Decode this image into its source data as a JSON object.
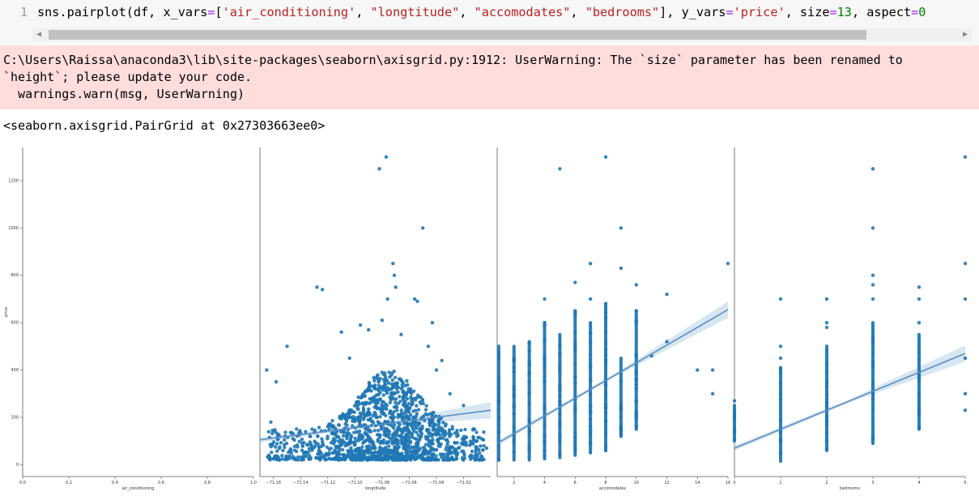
{
  "cell": {
    "line_number": "1",
    "code_text": "sns.pairplot(df, x_vars=['air_conditioning', \"longtitude\", \"accomodates\", \"bedrooms\"], y_vars='price', size=13, aspect=0"
  },
  "scrollbar": {
    "left_arrow": "◀",
    "right_arrow": "▶"
  },
  "stderr": {
    "line1": "C:\\Users\\Raissa\\anaconda3\\lib\\site-packages\\seaborn\\axisgrid.py:1912: UserWarning: The `size` parameter has been renamed to",
    "line2": "`height`; please update your code.",
    "line3": "  warnings.warn(msg, UserWarning)"
  },
  "output_repr": "<seaborn.axisgrid.PairGrid at 0x27303663ee0>",
  "colors": {
    "points": "#1f77b4",
    "regline": "#1f77b4",
    "stderr_bg": "#ffdddd",
    "code_bg": "#f7f7f7"
  },
  "chart_data": [
    {
      "type": "scatter",
      "xlabel": "air_conditioning",
      "ylabel": "price",
      "xlim": [
        0.0,
        1.0
      ],
      "ylim": [
        -50,
        1340
      ],
      "x_ticks": [
        "0.0",
        "0.2",
        "0.4",
        "0.6",
        "0.8",
        "1.0"
      ],
      "y_ticks": [
        "0",
        "200",
        "400",
        "600",
        "800",
        "1000",
        "1200"
      ],
      "y_tick_values": [
        0,
        200,
        400,
        600,
        800,
        1000,
        1200
      ],
      "points": [],
      "regression": null
    },
    {
      "type": "scatter",
      "xlabel": "longtitude",
      "ylabel": "",
      "xlim": [
        -71.17,
        -71.0
      ],
      "ylim": [
        -50,
        1340
      ],
      "x_ticks": [
        "−71.16",
        "−71.14",
        "−71.12",
        "−71.10",
        "−71.08",
        "−71.06",
        "−71.04",
        "−71.02"
      ],
      "x_tick_values": [
        -71.16,
        -71.14,
        -71.12,
        -71.1,
        -71.08,
        -71.06,
        -71.04,
        -71.02
      ],
      "points": [
        [
          -71.165,
          400
        ],
        [
          -71.162,
          180
        ],
        [
          -71.158,
          350
        ],
        [
          -71.15,
          500
        ],
        [
          -71.128,
          750
        ],
        [
          -71.124,
          740
        ],
        [
          -71.11,
          560
        ],
        [
          -71.104,
          450
        ],
        [
          -71.096,
          590
        ],
        [
          -71.09,
          570
        ],
        [
          -71.082,
          1250
        ],
        [
          -71.08,
          610
        ],
        [
          -71.077,
          1300
        ],
        [
          -71.076,
          700
        ],
        [
          -71.072,
          850
        ],
        [
          -71.071,
          800
        ],
        [
          -71.07,
          750
        ],
        [
          -71.066,
          550
        ],
        [
          -71.056,
          700
        ],
        [
          -71.054,
          690
        ],
        [
          -71.05,
          1000
        ],
        [
          -71.046,
          500
        ],
        [
          -71.043,
          600
        ],
        [
          -71.04,
          400
        ],
        [
          -71.036,
          440
        ],
        [
          -71.03,
          300
        ],
        [
          -71.02,
          250
        ],
        [
          -71.012,
          150
        ],
        [
          -71.005,
          80
        ],
        [
          -71.003,
          70
        ]
      ],
      "cloud": {
        "count": 1500,
        "x_range": [
          -71.165,
          -71.005
        ],
        "y_range": [
          20,
          450
        ],
        "center_x": -71.075
      },
      "regression": {
        "x1": -71.17,
        "y1": 105,
        "x2": -71.0,
        "y2": 230
      }
    },
    {
      "type": "scatter",
      "xlabel": "accomodates",
      "ylabel": "",
      "xlim": [
        0.9,
        16
      ],
      "ylim": [
        -50,
        1340
      ],
      "x_ticks": [
        "2",
        "4",
        "6",
        "8",
        "10",
        "12",
        "14",
        "16"
      ],
      "x_tick_values": [
        2,
        4,
        6,
        8,
        10,
        12,
        14,
        16
      ],
      "points": [
        [
          1,
          20
        ],
        [
          1,
          500
        ],
        [
          2,
          450
        ],
        [
          3,
          480
        ],
        [
          4,
          700
        ],
        [
          4,
          600
        ],
        [
          5,
          1250
        ],
        [
          6,
          770
        ],
        [
          6,
          650
        ],
        [
          7,
          850
        ],
        [
          7,
          700
        ],
        [
          8,
          1300
        ],
        [
          8,
          680
        ],
        [
          8,
          560
        ],
        [
          9,
          1000
        ],
        [
          9,
          830
        ],
        [
          10,
          760
        ],
        [
          10,
          650
        ],
        [
          11,
          460
        ],
        [
          12,
          720
        ],
        [
          12,
          520
        ],
        [
          14,
          400
        ],
        [
          15,
          300
        ],
        [
          15,
          400
        ],
        [
          16,
          850
        ]
      ],
      "columns": [
        {
          "x": 1,
          "ymin": 20,
          "ymax": 490
        },
        {
          "x": 2,
          "ymin": 20,
          "ymax": 500
        },
        {
          "x": 3,
          "ymin": 20,
          "ymax": 520
        },
        {
          "x": 4,
          "ymin": 25,
          "ymax": 600
        },
        {
          "x": 5,
          "ymin": 30,
          "ymax": 550
        },
        {
          "x": 6,
          "ymin": 40,
          "ymax": 650
        },
        {
          "x": 7,
          "ymin": 50,
          "ymax": 600
        },
        {
          "x": 8,
          "ymin": 60,
          "ymax": 680
        },
        {
          "x": 9,
          "ymin": 120,
          "ymax": 450
        },
        {
          "x": 10,
          "ymin": 150,
          "ymax": 650
        }
      ],
      "regression": {
        "x1": 0.9,
        "y1": 90,
        "x2": 16,
        "y2": 655
      }
    },
    {
      "type": "scatter",
      "xlabel": "bedrooms",
      "ylabel": "",
      "xlim": [
        0,
        5
      ],
      "ylim": [
        -50,
        1340
      ],
      "x_ticks": [
        "0",
        "1",
        "2",
        "3",
        "4",
        "5"
      ],
      "x_tick_values": [
        0,
        1,
        2,
        3,
        4,
        5
      ],
      "points": [
        [
          0,
          270
        ],
        [
          0,
          200
        ],
        [
          0,
          150
        ],
        [
          1,
          700
        ],
        [
          1,
          500
        ],
        [
          1,
          450
        ],
        [
          2,
          700
        ],
        [
          2,
          600
        ],
        [
          2,
          580
        ],
        [
          2,
          500
        ],
        [
          3,
          1250
        ],
        [
          3,
          1000
        ],
        [
          3,
          800
        ],
        [
          3,
          760
        ],
        [
          3,
          700
        ],
        [
          4,
          750
        ],
        [
          4,
          700
        ],
        [
          4,
          600
        ],
        [
          4,
          500
        ],
        [
          4,
          300
        ],
        [
          5,
          1300
        ],
        [
          5,
          850
        ],
        [
          5,
          700
        ],
        [
          5,
          450
        ],
        [
          5,
          300
        ],
        [
          5,
          230
        ]
      ],
      "columns": [
        {
          "x": 0,
          "ymin": 100,
          "ymax": 250
        },
        {
          "x": 1,
          "ymin": 15,
          "ymax": 410
        },
        {
          "x": 2,
          "ymin": 60,
          "ymax": 490
        },
        {
          "x": 3,
          "ymin": 90,
          "ymax": 600
        },
        {
          "x": 4,
          "ymin": 150,
          "ymax": 550
        }
      ],
      "regression": {
        "x1": 0,
        "y1": 70,
        "x2": 5,
        "y2": 470
      }
    }
  ]
}
